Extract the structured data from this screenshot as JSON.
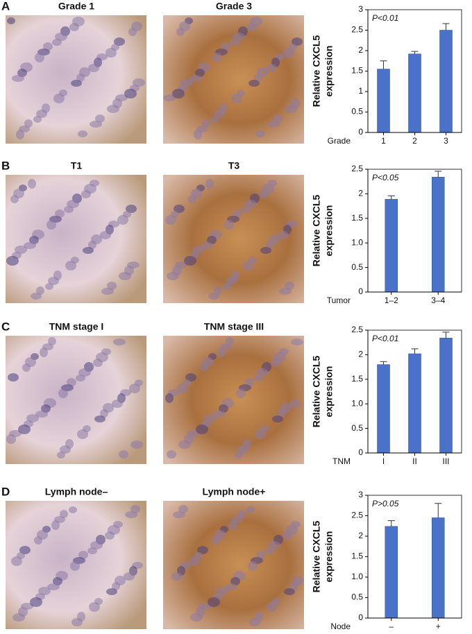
{
  "panels": [
    {
      "letter": "A",
      "captions": [
        "Grade 1",
        "Grade 3"
      ]
    },
    {
      "letter": "B",
      "captions": [
        "T1",
        "T3"
      ]
    },
    {
      "letter": "C",
      "captions": [
        "TNM stage I",
        "TNM stage III"
      ]
    },
    {
      "letter": "D",
      "captions": [
        "Lymph node–",
        "Lymph node+"
      ]
    }
  ],
  "chart_data": [
    {
      "type": "bar",
      "annotation": "P<0.01",
      "ylabel": [
        "Relative CXCL5",
        "expression"
      ],
      "xlabel": "Grade",
      "categories": [
        "1",
        "2",
        "3"
      ],
      "values": [
        1.55,
        1.92,
        2.5
      ],
      "errors": [
        0.2,
        0.06,
        0.16
      ],
      "color": "#4a72c8",
      "ylim": [
        0,
        3
      ],
      "yticks": [
        0,
        0.5,
        1,
        1.5,
        2,
        2.5,
        3
      ]
    },
    {
      "type": "bar",
      "annotation": "P<0.05",
      "ylabel": [
        "Relative CXCL5",
        "expression"
      ],
      "xlabel": "Tumor",
      "categories": [
        "1–2",
        "3–4"
      ],
      "values": [
        1.89,
        2.34
      ],
      "errors": [
        0.07,
        0.12
      ],
      "color": "#4a72c8",
      "ylim": [
        0,
        2.5
      ],
      "yticks": [
        0,
        0.5,
        {
          "value": 1,
          "label": "1.0"
        },
        1.5,
        2,
        2.5
      ]
    },
    {
      "type": "bar",
      "annotation": "P<0.01",
      "ylabel": [
        "Relative CXCL5",
        "expression"
      ],
      "xlabel": "TNM",
      "categories": [
        "I",
        "II",
        "III"
      ],
      "values": [
        1.8,
        2.02,
        2.34
      ],
      "errors": [
        0.06,
        0.1,
        0.12
      ],
      "color": "#4a72c8",
      "ylim": [
        0,
        2.5
      ],
      "yticks": [
        0,
        0.5,
        {
          "value": 1,
          "label": "1.0"
        },
        1.5,
        2,
        2.5
      ]
    },
    {
      "type": "bar",
      "annotation": "P>0.05",
      "ylabel": [
        "Relative CXCL5",
        "expression"
      ],
      "xlabel": "Node",
      "categories": [
        "–",
        "+"
      ],
      "values": [
        2.24,
        2.45
      ],
      "errors": [
        0.14,
        0.35
      ],
      "color": "#4a72c8",
      "ylim": [
        0,
        3
      ],
      "yticks": [
        0,
        0.5,
        {
          "value": 1,
          "label": "1.0"
        },
        1.5,
        2,
        2.5,
        3
      ]
    }
  ]
}
